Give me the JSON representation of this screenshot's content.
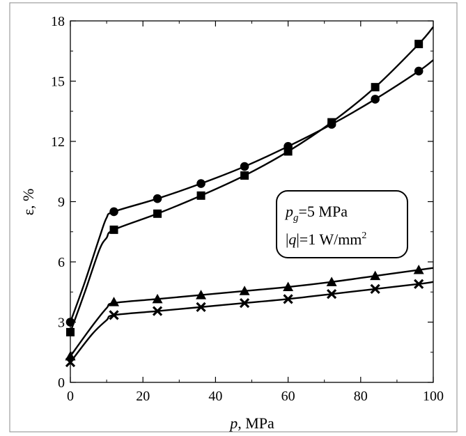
{
  "chart_data": {
    "type": "line",
    "xlabel_var": "p",
    "xlabel_unit": ", MPa",
    "ylabel": "ε, %",
    "xlim": [
      0,
      100
    ],
    "ylim": [
      0,
      18
    ],
    "x_ticks": [
      0,
      20,
      40,
      60,
      80,
      100
    ],
    "y_ticks": [
      0,
      3,
      6,
      9,
      12,
      15,
      18
    ],
    "annotation": {
      "line1_var": "p",
      "line1_sub": "g",
      "line1_rest": "=5 MPa",
      "line2_pre": "|",
      "line2_var": "q",
      "line2_rest": "|=1 W/mm",
      "line2_sup": "2"
    },
    "series": [
      {
        "marker": "square",
        "x": [
          0,
          12,
          24,
          36,
          48,
          60,
          72,
          84,
          96
        ],
        "y": [
          2.5,
          7.6,
          8.4,
          9.3,
          10.3,
          11.5,
          12.95,
          14.7,
          16.85
        ],
        "curve_x": [
          0,
          4,
          8,
          10,
          12,
          24,
          36,
          48,
          60,
          72,
          84,
          96,
          100
        ],
        "curve_y": [
          2.5,
          4.5,
          6.6,
          7.2,
          7.6,
          8.4,
          9.3,
          10.3,
          11.5,
          12.95,
          14.7,
          16.85,
          17.7
        ]
      },
      {
        "marker": "circle",
        "x": [
          0,
          12,
          24,
          36,
          48,
          60,
          72,
          84,
          96
        ],
        "y": [
          3.0,
          8.5,
          9.15,
          9.9,
          10.75,
          11.75,
          12.85,
          14.1,
          15.5
        ],
        "curve_x": [
          0,
          4,
          8,
          10,
          12,
          24,
          36,
          48,
          60,
          72,
          84,
          96,
          100
        ],
        "curve_y": [
          3.0,
          5.0,
          7.2,
          8.2,
          8.5,
          9.15,
          9.9,
          10.75,
          11.75,
          12.85,
          14.1,
          15.5,
          16.05
        ]
      },
      {
        "marker": "triangle",
        "x": [
          0,
          12,
          24,
          36,
          48,
          60,
          72,
          84,
          96
        ],
        "y": [
          1.3,
          4.0,
          4.15,
          4.35,
          4.55,
          4.75,
          5.0,
          5.3,
          5.6
        ],
        "curve_x": [
          0,
          6,
          10,
          12,
          24,
          36,
          48,
          60,
          72,
          84,
          96,
          100
        ],
        "curve_y": [
          1.3,
          2.8,
          3.7,
          3.95,
          4.15,
          4.35,
          4.55,
          4.75,
          5.0,
          5.3,
          5.6,
          5.7
        ]
      },
      {
        "marker": "cross",
        "x": [
          0,
          12,
          24,
          36,
          48,
          60,
          72,
          84,
          96
        ],
        "y": [
          1.0,
          3.35,
          3.55,
          3.75,
          3.95,
          4.15,
          4.4,
          4.65,
          4.9
        ],
        "curve_x": [
          0,
          6,
          10,
          12,
          24,
          36,
          48,
          60,
          72,
          84,
          96,
          100
        ],
        "curve_y": [
          1.0,
          2.4,
          3.1,
          3.35,
          3.55,
          3.75,
          3.95,
          4.15,
          4.4,
          4.65,
          4.9,
          5.0
        ]
      }
    ]
  }
}
